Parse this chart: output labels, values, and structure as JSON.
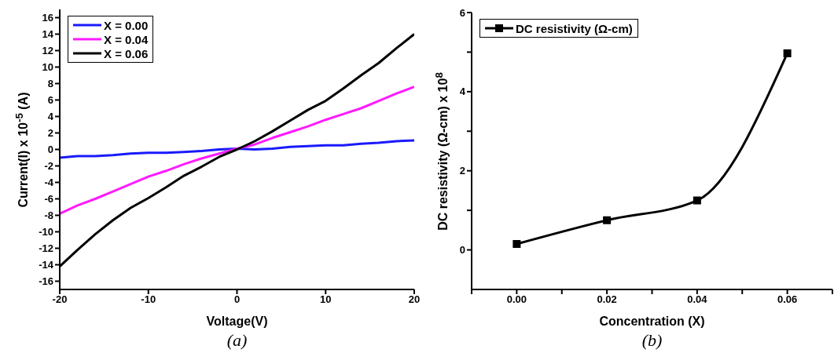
{
  "chart_data": [
    {
      "type": "line",
      "xlabel": "Voltage(V)",
      "ylabel": "Current(I) x 10$^{-5}$ (A)",
      "annotations": [
        "(a)"
      ],
      "legend": "top left",
      "marker": "none",
      "line_style": "solid",
      "x": [
        -20,
        -18,
        -16,
        -14,
        -12,
        -10,
        -8,
        -6,
        -4,
        -2,
        0,
        2,
        4,
        6,
        8,
        10,
        12,
        14,
        16,
        18,
        20
      ],
      "xlim": [
        -20,
        20
      ],
      "xticks": [
        -20,
        -10,
        0,
        10,
        20
      ],
      "ylim": [
        -17,
        17
      ],
      "yticks": [
        -16,
        -14,
        -12,
        -10,
        -8,
        -6,
        -4,
        -2,
        0,
        2,
        4,
        6,
        8,
        10,
        12,
        14,
        16
      ],
      "series": [
        {
          "name": "X = 0.00",
          "color": "#1a1aff",
          "values": [
            -1.0,
            -0.8,
            -0.8,
            -0.7,
            -0.5,
            -0.4,
            -0.4,
            -0.3,
            -0.2,
            0.0,
            0.1,
            0.0,
            0.1,
            0.3,
            0.4,
            0.5,
            0.5,
            0.7,
            0.8,
            1.0,
            1.1
          ]
        },
        {
          "name": "X = 0.04",
          "color": "#ff1aff",
          "values": [
            -7.8,
            -6.8,
            -6.0,
            -5.1,
            -4.2,
            -3.3,
            -2.6,
            -1.8,
            -1.1,
            -0.5,
            0.1,
            0.6,
            1.4,
            2.1,
            2.8,
            3.6,
            4.3,
            5.0,
            5.9,
            6.8,
            7.6
          ]
        },
        {
          "name": "X = 0.06",
          "color": "#000000",
          "values": [
            -14.2,
            -12.2,
            -10.3,
            -8.6,
            -7.1,
            -5.9,
            -4.6,
            -3.2,
            -2.1,
            -0.9,
            0.0,
            1.0,
            2.2,
            3.5,
            4.8,
            5.9,
            7.4,
            9.0,
            10.5,
            12.3,
            14.0
          ]
        }
      ]
    },
    {
      "type": "line",
      "xlabel": "Concentration (X)",
      "ylabel": "DC resistivity (Ω-cm) x 10$^{8}$",
      "annotations": [
        "(b)"
      ],
      "legend": "top left",
      "marker": "square",
      "line_style": "solid",
      "x": [
        0.0,
        0.02,
        0.04,
        0.06
      ],
      "xlim": [
        -0.01,
        0.07
      ],
      "xticks": [
        {
          "value": -0.01,
          "label": null
        },
        {
          "value": 0,
          "label": "0.00"
        },
        {
          "value": 0.01,
          "label": null
        },
        {
          "value": 0.02,
          "label": "0.02"
        },
        {
          "value": 0.03,
          "label": null
        },
        {
          "value": 0.04,
          "label": "0.04"
        },
        {
          "value": 0.05,
          "label": null
        },
        {
          "value": 0.06,
          "label": "0.06"
        },
        {
          "value": 0.07,
          "label": null
        }
      ],
      "ylim": [
        -1,
        6
      ],
      "yticks": [
        0,
        {
          "value": 1,
          "label": null
        },
        2,
        {
          "value": 3,
          "label": null
        },
        4,
        {
          "value": 5,
          "label": null
        },
        6
      ],
      "series": [
        {
          "name": "DC resistivity (Ω-cm)",
          "color": "#000000",
          "values": [
            0.15,
            0.75,
            1.25,
            4.97
          ]
        }
      ]
    }
  ]
}
